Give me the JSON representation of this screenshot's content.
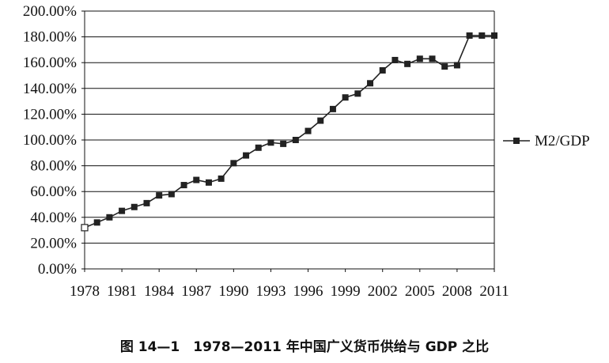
{
  "caption": "图 14—1　1978—2011 年中国广义货币供给与 GDP 之比",
  "chart_data": {
    "type": "line",
    "title": "",
    "xlabel": "",
    "ylabel": "",
    "ylim": [
      0,
      200
    ],
    "xlim": [
      1978,
      2011
    ],
    "y_tick_labels": [
      "0.00%",
      "20.00%",
      "40.00%",
      "60.00%",
      "80.00%",
      "100.00%",
      "120.00%",
      "140.00%",
      "160.00%",
      "180.00%",
      "200.00%"
    ],
    "x_tick_labels": [
      "1978",
      "1981",
      "1984",
      "1987",
      "1990",
      "1993",
      "1996",
      "1999",
      "2002",
      "2005",
      "2008",
      "2011"
    ],
    "grid": "horizontal",
    "legend_position": "right",
    "x": [
      1978,
      1979,
      1980,
      1981,
      1982,
      1983,
      1984,
      1985,
      1986,
      1987,
      1988,
      1989,
      1990,
      1991,
      1992,
      1993,
      1994,
      1995,
      1996,
      1997,
      1998,
      1999,
      2000,
      2001,
      2002,
      2003,
      2004,
      2005,
      2006,
      2007,
      2008,
      2009,
      2010,
      2011
    ],
    "series": [
      {
        "name": "M2/GDP",
        "color": "#222222",
        "values": [
          32,
          36,
          40,
          45,
          48,
          51,
          57,
          58,
          65,
          69,
          67,
          70,
          82,
          88,
          94,
          98,
          97,
          100,
          107,
          115,
          124,
          133,
          136,
          144,
          154,
          162,
          159,
          163,
          163,
          157,
          158,
          181,
          181,
          181
        ]
      }
    ]
  }
}
